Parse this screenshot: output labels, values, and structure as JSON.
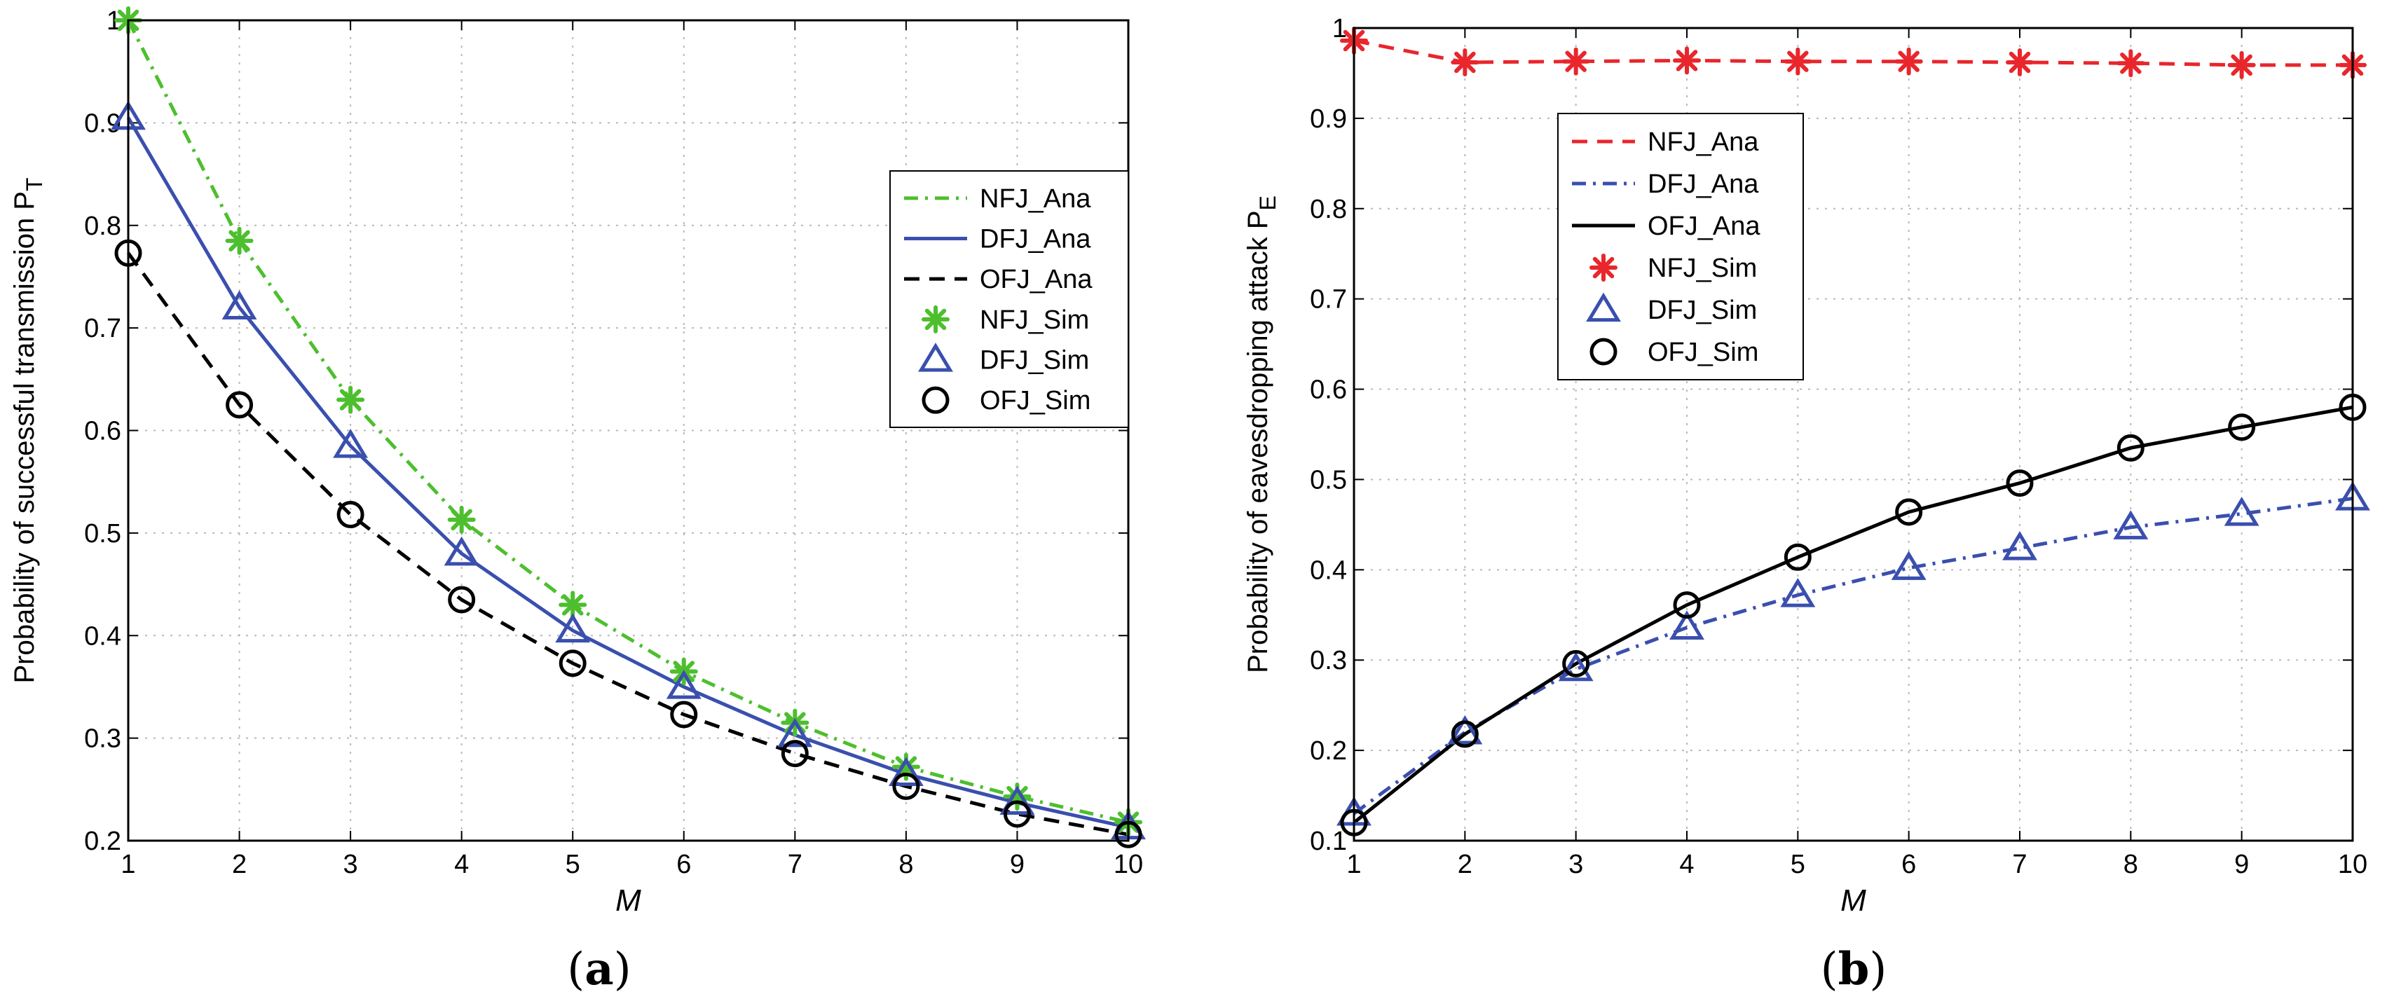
{
  "chart_data": [
    {
      "type": "line",
      "panel_label": "(a)",
      "panel_letter": "a",
      "xlabel": "M",
      "ylabel": "Probability of successful transmission P",
      "ylabel_sub": "T",
      "xlim": [
        1,
        10
      ],
      "ylim": [
        0.2,
        1
      ],
      "xticks": [
        1,
        2,
        3,
        4,
        5,
        6,
        7,
        8,
        9,
        10
      ],
      "yticks": [
        0.2,
        0.3,
        0.4,
        0.5,
        0.6,
        0.7,
        0.8,
        0.9,
        1
      ],
      "ytick_labels": [
        "0.2",
        "0.3",
        "0.4",
        "0.5",
        "0.6",
        "0.7",
        "0.8",
        "0.9",
        "1"
      ],
      "grid": true,
      "legend_position": "right",
      "x": [
        1,
        2,
        3,
        4,
        5,
        6,
        7,
        8,
        9,
        10
      ],
      "series": [
        {
          "name": "NFJ_Ana",
          "kind": "line",
          "style": "dashdot",
          "color": "#4dbf2e",
          "values": [
            1.0,
            0.785,
            0.63,
            0.513,
            0.43,
            0.365,
            0.315,
            0.272,
            0.243,
            0.218
          ]
        },
        {
          "name": "DFJ_Ana",
          "kind": "line",
          "style": "solid",
          "color": "#3a4fae",
          "values": [
            0.905,
            0.72,
            0.585,
            0.48,
            0.405,
            0.35,
            0.303,
            0.265,
            0.237,
            0.213
          ]
        },
        {
          "name": "OFJ_Ana",
          "kind": "line",
          "style": "dashed",
          "color": "#000000",
          "values": [
            0.773,
            0.625,
            0.518,
            0.435,
            0.373,
            0.323,
            0.285,
            0.253,
            0.226,
            0.206
          ]
        },
        {
          "name": "NFJ_Sim",
          "kind": "marker",
          "marker": "asterisk",
          "color": "#4dbf2e",
          "values": [
            1.0,
            0.785,
            0.63,
            0.513,
            0.43,
            0.365,
            0.315,
            0.272,
            0.243,
            0.218
          ]
        },
        {
          "name": "DFJ_Sim",
          "kind": "marker",
          "marker": "triangle",
          "color": "#3a4fae",
          "values": [
            0.905,
            0.72,
            0.585,
            0.48,
            0.405,
            0.35,
            0.303,
            0.265,
            0.237,
            0.213
          ]
        },
        {
          "name": "OFJ_Sim",
          "kind": "marker",
          "marker": "circle",
          "color": "#000000",
          "values": [
            0.773,
            0.625,
            0.518,
            0.435,
            0.373,
            0.323,
            0.285,
            0.253,
            0.226,
            0.206
          ]
        }
      ]
    },
    {
      "type": "line",
      "panel_label": "(b)",
      "panel_letter": "b",
      "xlabel": "M",
      "ylabel": "Probability of eavesdropping attack P",
      "ylabel_sub": "E",
      "xlim": [
        1,
        10
      ],
      "ylim": [
        0.1,
        1
      ],
      "xticks": [
        1,
        2,
        3,
        4,
        5,
        6,
        7,
        8,
        9,
        10
      ],
      "yticks": [
        0.1,
        0.2,
        0.3,
        0.4,
        0.5,
        0.6,
        0.7,
        0.8,
        0.9,
        1
      ],
      "ytick_labels": [
        "0.1",
        "0.2",
        "0.3",
        "0.4",
        "0.5",
        "0.6",
        "0.7",
        "0.8",
        "0.9",
        "1"
      ],
      "grid": true,
      "legend_position": "upper-left",
      "x": [
        1,
        2,
        3,
        4,
        5,
        6,
        7,
        8,
        9,
        10
      ],
      "series": [
        {
          "name": "NFJ_Ana",
          "kind": "line",
          "style": "dashed",
          "color": "#e8262c",
          "values": [
            0.986,
            0.962,
            0.963,
            0.964,
            0.963,
            0.963,
            0.962,
            0.961,
            0.959,
            0.959
          ]
        },
        {
          "name": "DFJ_Ana",
          "kind": "line",
          "style": "dashdot",
          "color": "#3a4fae",
          "values": [
            0.13,
            0.22,
            0.29,
            0.336,
            0.372,
            0.402,
            0.424,
            0.447,
            0.462,
            0.479
          ]
        },
        {
          "name": "OFJ_Ana",
          "kind": "line",
          "style": "solid",
          "color": "#000000",
          "values": [
            0.12,
            0.218,
            0.296,
            0.361,
            0.414,
            0.464,
            0.496,
            0.535,
            0.558,
            0.58
          ]
        },
        {
          "name": "NFJ_Sim",
          "kind": "marker",
          "marker": "asterisk",
          "color": "#e8262c",
          "values": [
            0.986,
            0.962,
            0.963,
            0.964,
            0.963,
            0.963,
            0.962,
            0.961,
            0.959,
            0.959
          ]
        },
        {
          "name": "DFJ_Sim",
          "kind": "marker",
          "marker": "triangle",
          "color": "#3a4fae",
          "values": [
            0.13,
            0.22,
            0.29,
            0.336,
            0.372,
            0.402,
            0.424,
            0.447,
            0.462,
            0.479
          ]
        },
        {
          "name": "OFJ_Sim",
          "kind": "marker",
          "marker": "circle",
          "color": "#000000",
          "values": [
            0.12,
            0.218,
            0.296,
            0.361,
            0.414,
            0.464,
            0.496,
            0.535,
            0.558,
            0.58
          ]
        }
      ]
    }
  ]
}
